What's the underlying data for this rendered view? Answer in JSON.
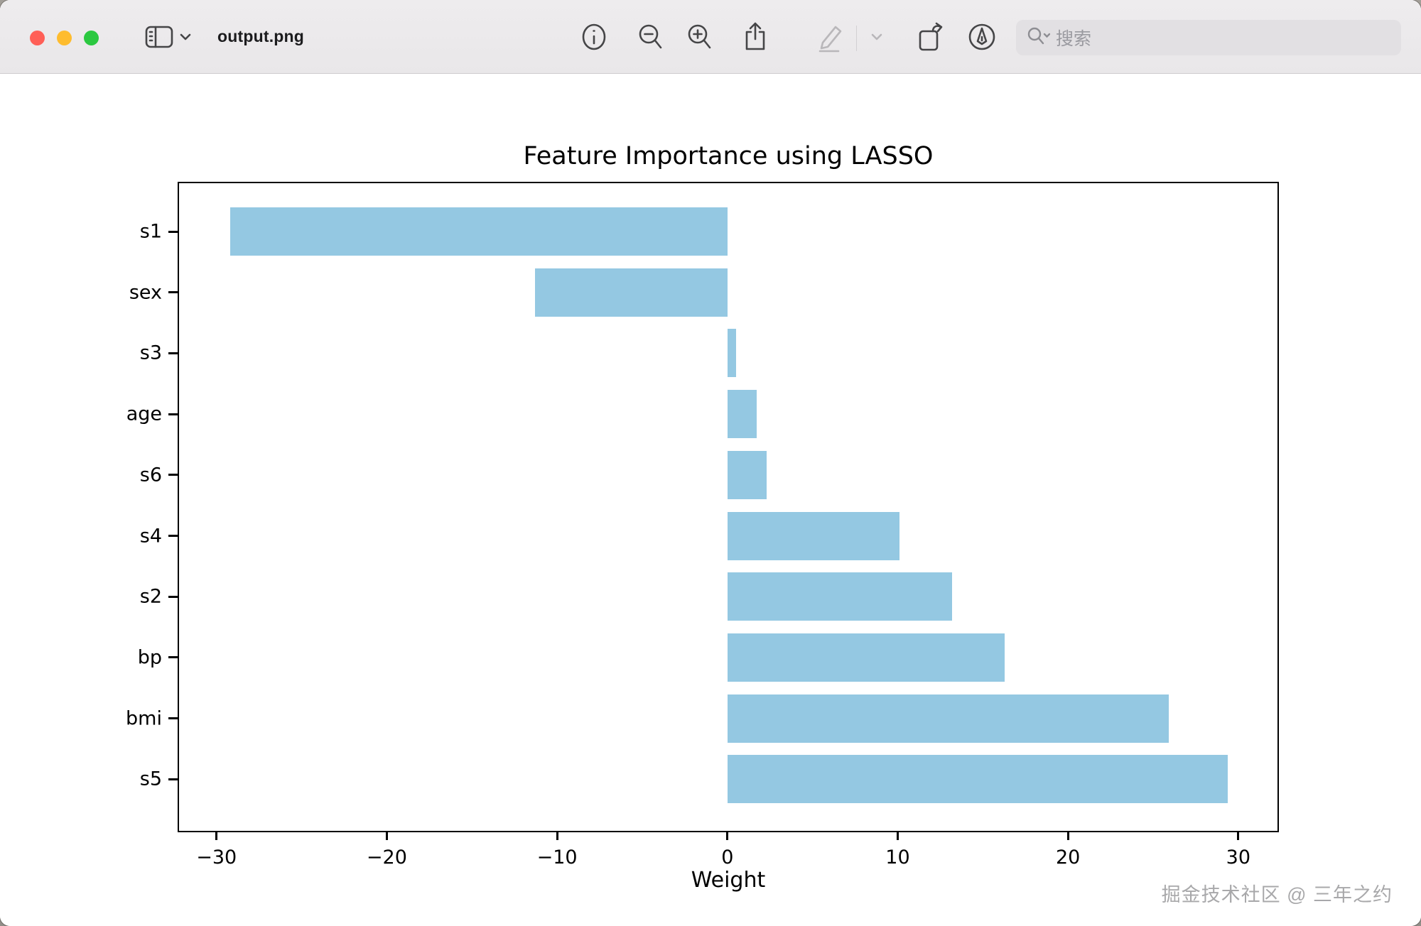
{
  "window": {
    "title": "output.png",
    "traffic_lights": {
      "close": "#ff5f57",
      "minimize": "#febc2e",
      "zoom": "#2bc840"
    },
    "toolbar": {
      "icons": [
        "sidebar-toggle",
        "sidebar-chevron",
        "info",
        "zoom-out",
        "zoom-in",
        "share",
        "markup-pencil (disabled)",
        "markup-chevron (disabled)",
        "rotate",
        "annotate-pen",
        "search"
      ],
      "search_placeholder": "搜索"
    }
  },
  "chart_data": {
    "type": "bar",
    "orientation": "horizontal",
    "title": "Feature Importance using LASSO",
    "xlabel": "Weight",
    "ylabel": "",
    "categories": [
      "s1",
      "sex",
      "s3",
      "age",
      "s6",
      "s4",
      "s2",
      "bp",
      "bmi",
      "s5"
    ],
    "values": [
      -29.2,
      -11.3,
      0.5,
      1.7,
      2.3,
      10.1,
      13.2,
      16.3,
      25.9,
      29.4
    ],
    "xticks": [
      -30,
      -20,
      -10,
      0,
      10,
      20,
      30
    ],
    "xlim": [
      -32.2,
      32.3
    ],
    "bar_color": "#94c8e2",
    "grid": false,
    "legend": null
  },
  "watermark": {
    "text": "掘金技术社区 @ 三年之约"
  }
}
